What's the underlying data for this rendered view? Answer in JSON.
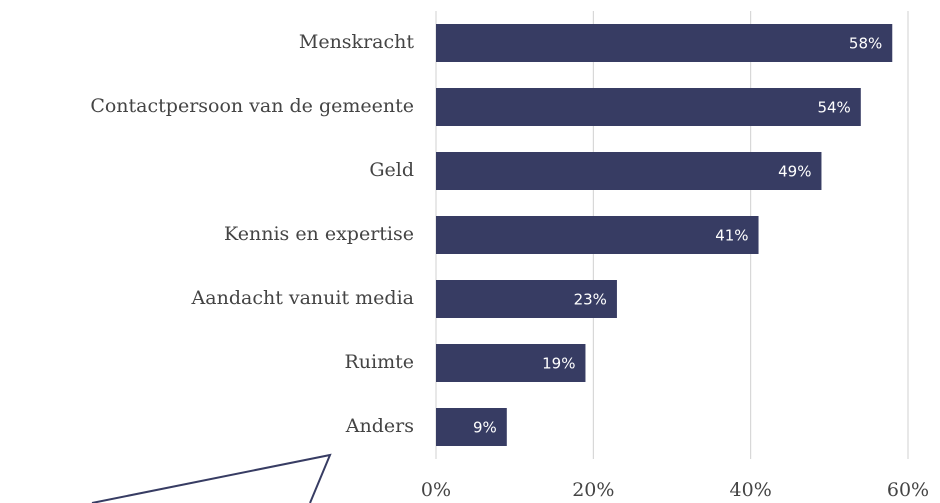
{
  "chart_data": {
    "type": "bar",
    "orientation": "horizontal",
    "categories": [
      "Menskracht",
      "Contactpersoon van de gemeente",
      "Geld",
      "Kennis en expertise",
      "Aandacht vanuit media",
      "Ruimte",
      "Anders"
    ],
    "values": [
      58,
      54,
      49,
      41,
      23,
      19,
      9
    ],
    "value_labels": [
      "58%",
      "54%",
      "49%",
      "41%",
      "23%",
      "19%",
      "9%"
    ],
    "color": "#373c63",
    "xlim": [
      0,
      60
    ],
    "xticks": [
      {
        "value": 0,
        "label": "0%"
      },
      {
        "value": 20,
        "label": "20%"
      },
      {
        "value": 40,
        "label": "40%"
      },
      {
        "value": 60,
        "label": "60%"
      }
    ],
    "grid": true
  }
}
